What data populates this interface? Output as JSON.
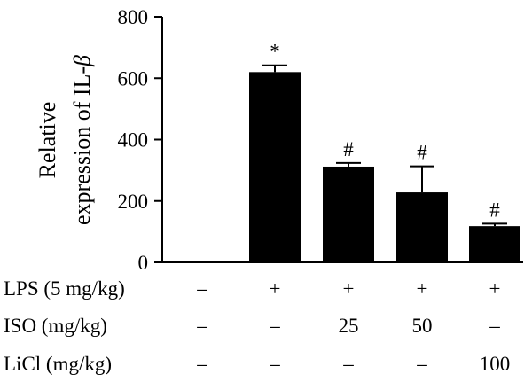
{
  "chart_data": {
    "type": "bar",
    "ylabel_line1": "Relative",
    "ylabel_line2_prefix": "expression of IL-",
    "ylabel_line2_symbol": "β",
    "ylim": [
      0,
      800
    ],
    "yticks": [
      0,
      200,
      400,
      600,
      800
    ],
    "bar_color": "#000000",
    "values": [
      3,
      620,
      312,
      228,
      118
    ],
    "errors": [
      0,
      22,
      12,
      85,
      8
    ],
    "annotations": [
      "",
      "*",
      "#",
      "#",
      "#"
    ],
    "conditions": [
      {
        "label": "LPS (5 mg/kg)",
        "values": [
          "–",
          "+",
          "+",
          "+",
          "+"
        ]
      },
      {
        "label": "ISO (mg/kg)",
        "values": [
          "–",
          "–",
          "25",
          "50",
          "–"
        ]
      },
      {
        "label": "LiCl (mg/kg)",
        "values": [
          "–",
          "–",
          "–",
          "–",
          "100"
        ]
      }
    ]
  }
}
